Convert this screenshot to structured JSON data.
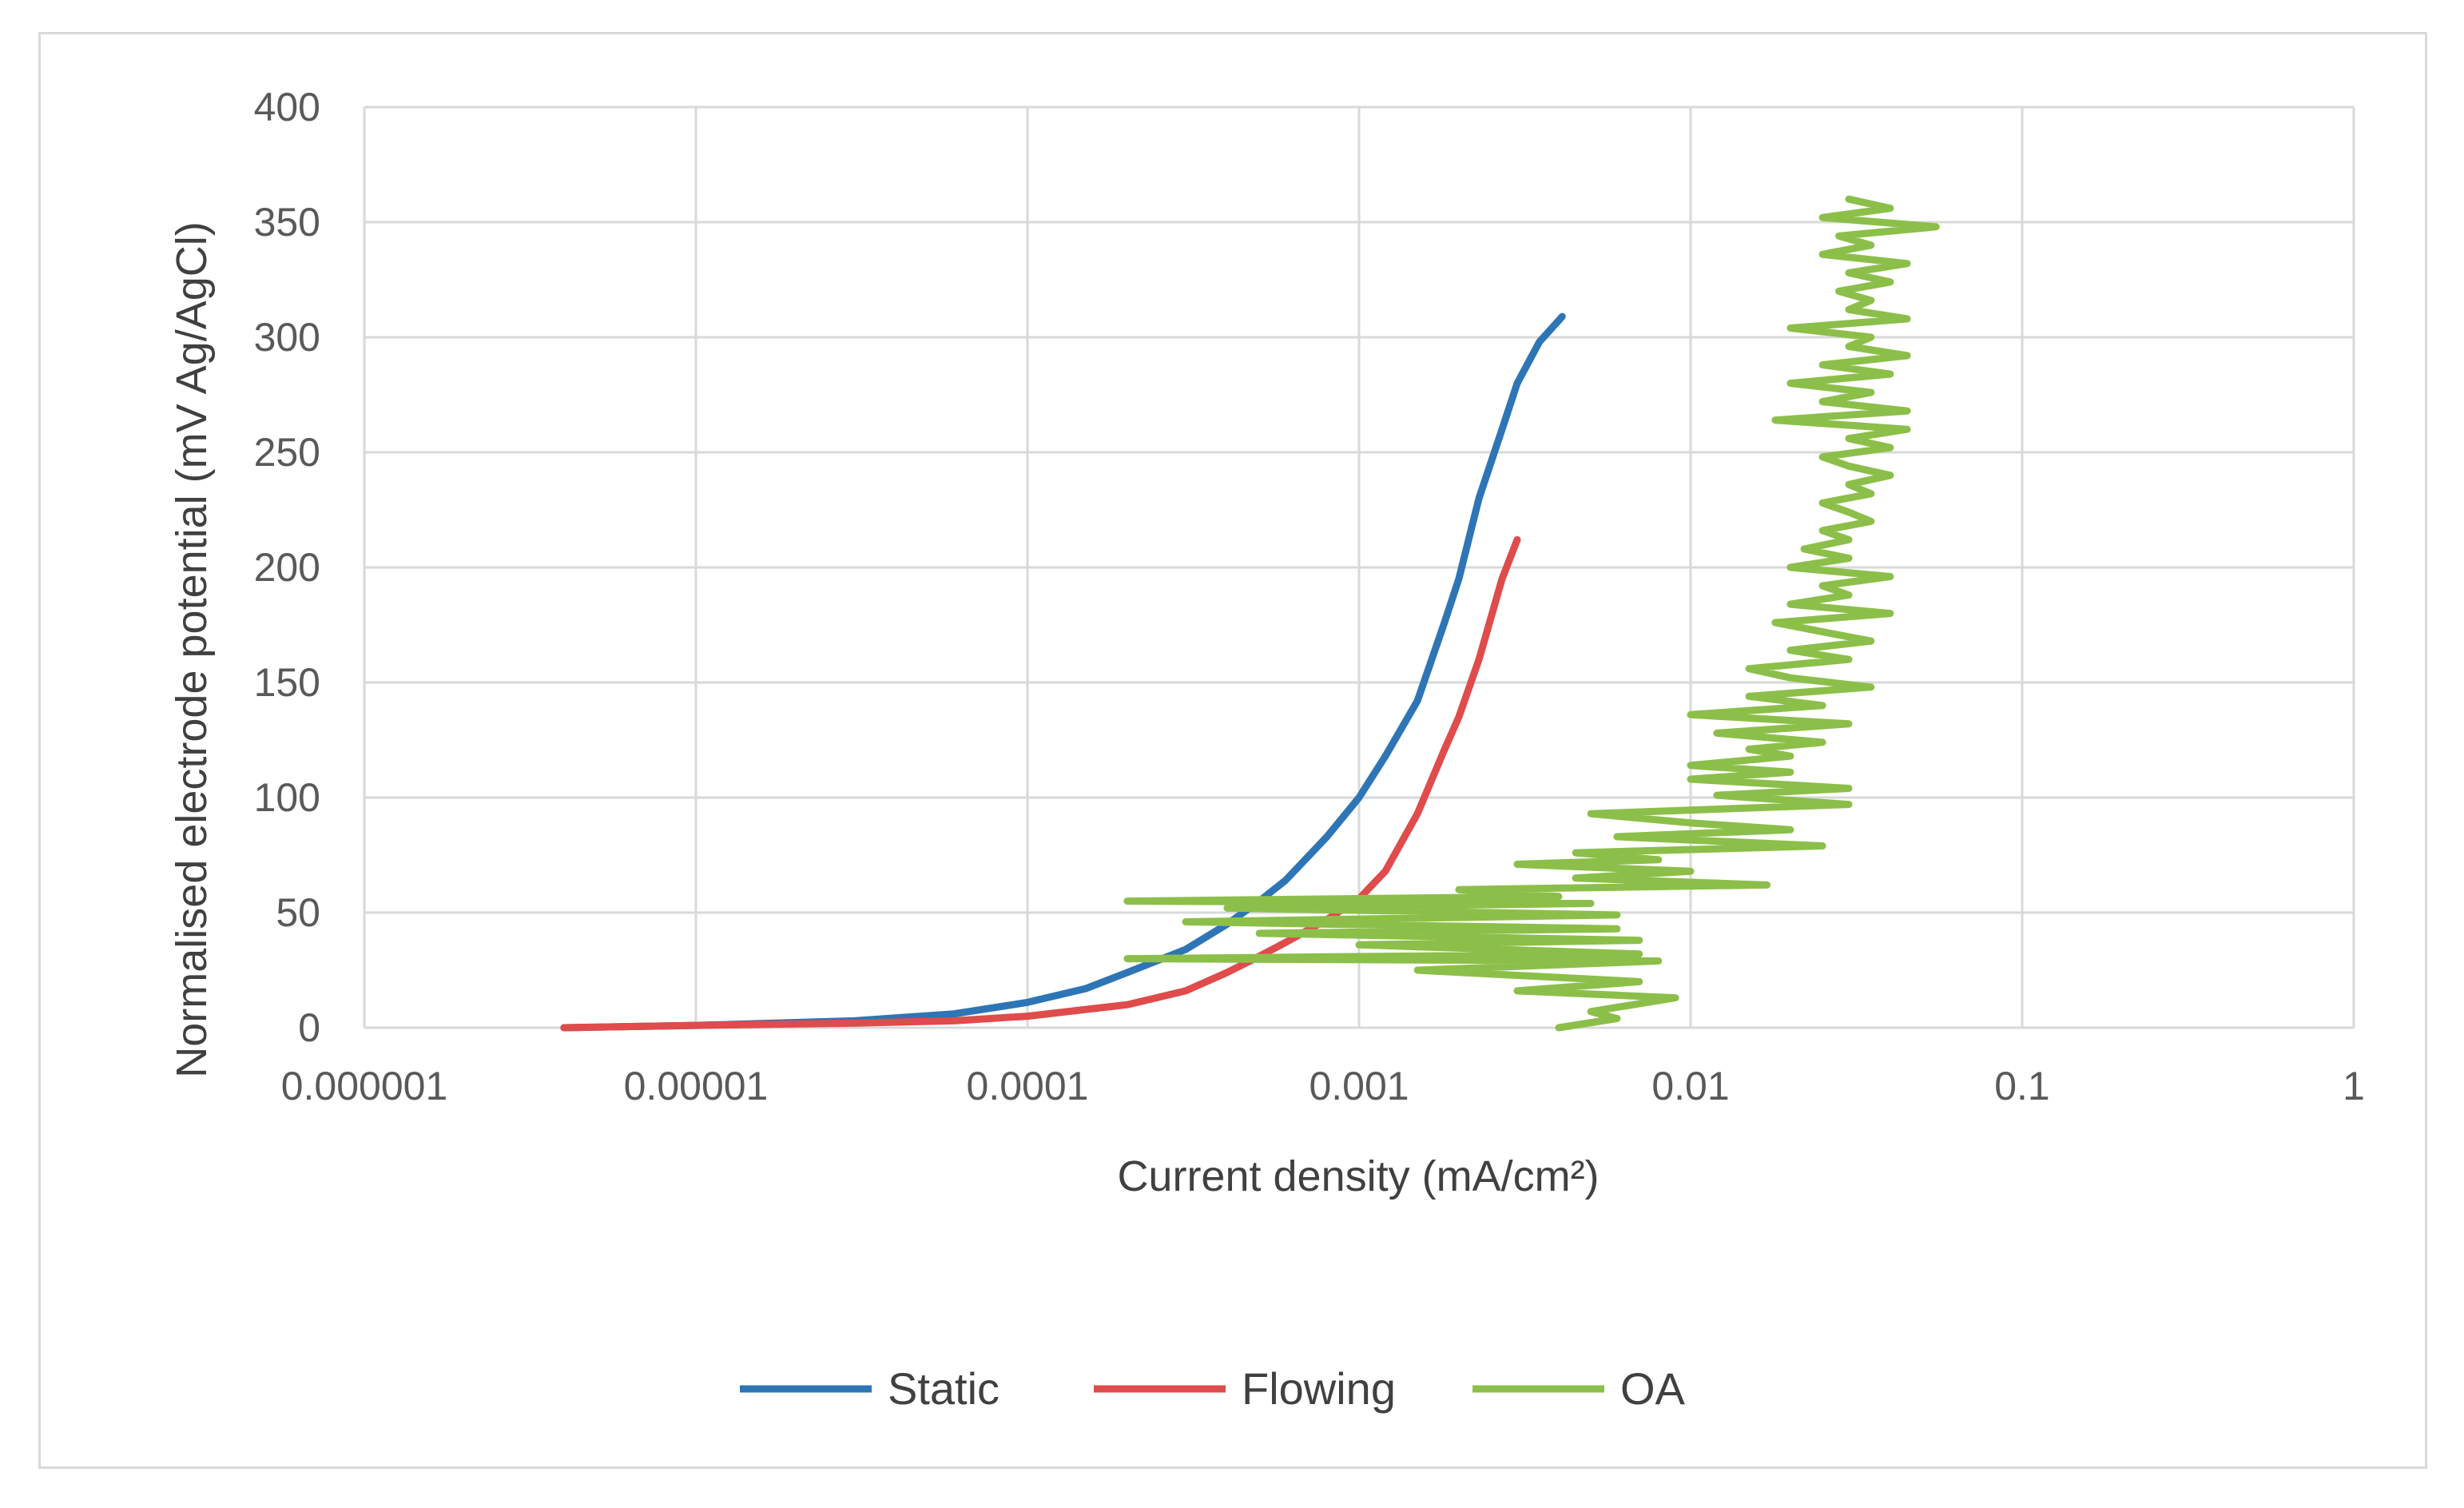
{
  "chart_data": {
    "type": "scatter",
    "title": "",
    "xlabel": "Current density  (mA/cm²)",
    "ylabel": "Normalised  electrode  potential  (mV Ag/AgCl)",
    "x_scale": "log",
    "xlim": [
      1e-06,
      1
    ],
    "ylim": [
      0,
      400
    ],
    "x_ticks": [
      "0.000001",
      "0.00001",
      "0.0001",
      "0.001",
      "0.01",
      "0.1",
      "1"
    ],
    "y_ticks": [
      "0",
      "50",
      "100",
      "150",
      "200",
      "250",
      "300",
      "350",
      "400"
    ],
    "grid": true,
    "legend_position": "bottom",
    "series": [
      {
        "name": "Static",
        "color": "#2E75B6",
        "points": [
          [
            4e-06,
            0
          ],
          [
            1e-05,
            1
          ],
          [
            3e-05,
            3
          ],
          [
            6e-05,
            6
          ],
          [
            0.0001,
            11
          ],
          [
            0.00015,
            17
          ],
          [
            0.0002,
            24
          ],
          [
            0.0003,
            34
          ],
          [
            0.0004,
            45
          ],
          [
            0.0005,
            55
          ],
          [
            0.0006,
            64
          ],
          [
            0.0008,
            83
          ],
          [
            0.001,
            100
          ],
          [
            0.0012,
            118
          ],
          [
            0.0015,
            142
          ],
          [
            0.0018,
            175
          ],
          [
            0.002,
            195
          ],
          [
            0.0023,
            230
          ],
          [
            0.0027,
            260
          ],
          [
            0.003,
            280
          ],
          [
            0.0035,
            298
          ],
          [
            0.0041,
            309
          ]
        ]
      },
      {
        "name": "Flowing",
        "color": "#E04B4B",
        "points": [
          [
            4e-06,
            0
          ],
          [
            1e-05,
            1
          ],
          [
            3e-05,
            2
          ],
          [
            6e-05,
            3
          ],
          [
            0.0001,
            5
          ],
          [
            0.0002,
            10
          ],
          [
            0.0003,
            16
          ],
          [
            0.0004,
            24
          ],
          [
            0.0005,
            31
          ],
          [
            0.0006,
            37
          ],
          [
            0.0008,
            47
          ],
          [
            0.001,
            56
          ],
          [
            0.0012,
            68
          ],
          [
            0.0015,
            93
          ],
          [
            0.0018,
            120
          ],
          [
            0.002,
            135
          ],
          [
            0.0023,
            160
          ],
          [
            0.0027,
            195
          ],
          [
            0.003,
            212
          ]
        ]
      },
      {
        "name": "OA",
        "color": "#8CBF4A",
        "points": [
          [
            0.004,
            0
          ],
          [
            0.006,
            4
          ],
          [
            0.005,
            7
          ],
          [
            0.009,
            13
          ],
          [
            0.003,
            16
          ],
          [
            0.007,
            20
          ],
          [
            0.0015,
            25
          ],
          [
            0.008,
            29
          ],
          [
            0.0002,
            30
          ],
          [
            0.007,
            32
          ],
          [
            0.001,
            36
          ],
          [
            0.007,
            38
          ],
          [
            0.0005,
            41
          ],
          [
            0.006,
            43
          ],
          [
            0.0003,
            46
          ],
          [
            0.006,
            49
          ],
          [
            0.0004,
            52
          ],
          [
            0.005,
            54
          ],
          [
            0.0002,
            55
          ],
          [
            0.004,
            57
          ],
          [
            0.002,
            60
          ],
          [
            0.017,
            62
          ],
          [
            0.0045,
            65
          ],
          [
            0.01,
            68
          ],
          [
            0.003,
            71
          ],
          [
            0.008,
            73
          ],
          [
            0.0045,
            76
          ],
          [
            0.025,
            79
          ],
          [
            0.006,
            83
          ],
          [
            0.02,
            86
          ],
          [
            0.01,
            89
          ],
          [
            0.005,
            93
          ],
          [
            0.03,
            97
          ],
          [
            0.012,
            101
          ],
          [
            0.03,
            104
          ],
          [
            0.01,
            108
          ],
          [
            0.02,
            111
          ],
          [
            0.01,
            114
          ],
          [
            0.02,
            118
          ],
          [
            0.015,
            121
          ],
          [
            0.025,
            124
          ],
          [
            0.012,
            128
          ],
          [
            0.03,
            132
          ],
          [
            0.01,
            136
          ],
          [
            0.025,
            140
          ],
          [
            0.015,
            144
          ],
          [
            0.035,
            148
          ],
          [
            0.02,
            152
          ],
          [
            0.015,
            156
          ],
          [
            0.03,
            160
          ],
          [
            0.02,
            164
          ],
          [
            0.035,
            168
          ],
          [
            0.025,
            172
          ],
          [
            0.018,
            176
          ],
          [
            0.04,
            180
          ],
          [
            0.02,
            184
          ],
          [
            0.03,
            188
          ],
          [
            0.025,
            192
          ],
          [
            0.04,
            196
          ],
          [
            0.02,
            200
          ],
          [
            0.03,
            204
          ],
          [
            0.022,
            208
          ],
          [
            0.03,
            212
          ],
          [
            0.025,
            216
          ],
          [
            0.035,
            220
          ],
          [
            0.03,
            224
          ],
          [
            0.025,
            228
          ],
          [
            0.035,
            232
          ],
          [
            0.03,
            236
          ],
          [
            0.04,
            240
          ],
          [
            0.03,
            244
          ],
          [
            0.025,
            248
          ],
          [
            0.04,
            252
          ],
          [
            0.03,
            256
          ],
          [
            0.045,
            260
          ],
          [
            0.018,
            264
          ],
          [
            0.045,
            268
          ],
          [
            0.025,
            272
          ],
          [
            0.035,
            276
          ],
          [
            0.02,
            280
          ],
          [
            0.04,
            284
          ],
          [
            0.025,
            288
          ],
          [
            0.045,
            292
          ],
          [
            0.03,
            296
          ],
          [
            0.035,
            300
          ],
          [
            0.02,
            304
          ],
          [
            0.045,
            308
          ],
          [
            0.03,
            312
          ],
          [
            0.035,
            316
          ],
          [
            0.028,
            320
          ],
          [
            0.04,
            324
          ],
          [
            0.03,
            328
          ],
          [
            0.045,
            332
          ],
          [
            0.025,
            336
          ],
          [
            0.035,
            340
          ],
          [
            0.028,
            344
          ],
          [
            0.055,
            348
          ],
          [
            0.025,
            352
          ],
          [
            0.04,
            356
          ],
          [
            0.03,
            360
          ]
        ]
      }
    ]
  }
}
